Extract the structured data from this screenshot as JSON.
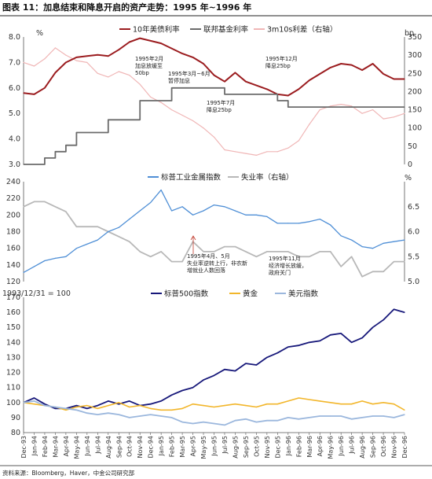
{
  "figure": {
    "title": "图表 11：加息结束和降息开启的资产走势：1995 年~1996 年",
    "source": "资料来源：Bloomberg，Haver，中金公司研究部"
  },
  "x_labels": [
    "Dec-93",
    "Jan-94",
    "Feb-94",
    "Mar-94",
    "Apr-94",
    "May-94",
    "Jun-94",
    "Jul-94",
    "Aug-94",
    "Sep-94",
    "Oct-94",
    "Nov-94",
    "Dec-94",
    "Jan-95",
    "Feb-95",
    "Mar-95",
    "Apr-95",
    "May-95",
    "Jun-95",
    "Jul-95",
    "Aug-95",
    "Sep-95",
    "Oct-95",
    "Nov-95",
    "Dec-95",
    "Jan-96",
    "Feb-96",
    "Mar-96",
    "Apr-96",
    "May-96",
    "Jun-96",
    "Jul-96",
    "Aug-96",
    "Sep-96",
    "Oct-96",
    "Nov-96",
    "Dec-96"
  ],
  "colors": {
    "ust10y": "#9b1c1f",
    "fed_funds": "#6b6b6b",
    "spread": "#f0b6b6",
    "metals": "#4f8fd6",
    "unemployment": "#b8b8b8",
    "sp500": "#17187a",
    "gold": "#f2b62b",
    "usd": "#9bb7dd"
  },
  "chart_data": [
    {
      "type": "line",
      "panel": "top",
      "ylabel_left": "%",
      "ylabel_right": "bp",
      "ylim_left": [
        3.0,
        8.0
      ],
      "ylim_right": [
        0,
        350
      ],
      "yticks_left": [
        "3.0",
        "4.0",
        "5.0",
        "6.0",
        "7.0",
        "8.0"
      ],
      "yticks_right": [
        "0",
        "50",
        "100",
        "150",
        "200",
        "250",
        "300",
        "350"
      ],
      "series": [
        {
          "name": "10年美债利率",
          "axis": "left",
          "x": [
            "Dec-93",
            "Jan-94",
            "Feb-94",
            "Mar-94",
            "Apr-94",
            "May-94",
            "Jun-94",
            "Jul-94",
            "Aug-94",
            "Sep-94",
            "Oct-94",
            "Nov-94",
            "Dec-94",
            "Jan-95",
            "Feb-95",
            "Mar-95",
            "Apr-95",
            "May-95",
            "Jun-95",
            "Jul-95",
            "Aug-95",
            "Sep-95",
            "Oct-95",
            "Nov-95",
            "Dec-95",
            "Jan-96",
            "Feb-96",
            "Mar-96",
            "Apr-96",
            "May-96",
            "Jun-96",
            "Jul-96",
            "Aug-96",
            "Sep-96",
            "Oct-96",
            "Nov-96",
            "Dec-96"
          ],
          "values": [
            5.8,
            5.75,
            6.0,
            6.6,
            7.0,
            7.2,
            7.25,
            7.3,
            7.25,
            7.5,
            7.8,
            7.95,
            7.85,
            7.75,
            7.55,
            7.35,
            7.2,
            6.95,
            6.5,
            6.25,
            6.6,
            6.25,
            6.1,
            5.95,
            5.75,
            5.7,
            5.95,
            6.3,
            6.55,
            6.8,
            6.95,
            6.9,
            6.7,
            6.95,
            6.55,
            6.35,
            6.35
          ]
        },
        {
          "name": "联邦基金利率",
          "axis": "left",
          "step": true,
          "x": [
            "Dec-93",
            "Feb-94",
            "Mar-94",
            "Apr-94",
            "May-94",
            "Aug-94",
            "Nov-94",
            "Feb-95",
            "Jul-95",
            "Dec-95",
            "Jan-96",
            "Dec-96"
          ],
          "values": [
            3.0,
            3.25,
            3.5,
            3.75,
            4.25,
            4.75,
            5.5,
            6.0,
            5.75,
            5.5,
            5.25,
            5.25
          ]
        },
        {
          "name": "3m10s利差（右轴）",
          "axis": "right",
          "x": [
            "Dec-93",
            "Jan-94",
            "Feb-94",
            "Mar-94",
            "Apr-94",
            "May-94",
            "Jun-94",
            "Jul-94",
            "Aug-94",
            "Sep-94",
            "Oct-94",
            "Nov-94",
            "Dec-94",
            "Jan-95",
            "Feb-95",
            "Mar-95",
            "Apr-95",
            "May-95",
            "Jun-95",
            "Jul-95",
            "Aug-95",
            "Sep-95",
            "Oct-95",
            "Nov-95",
            "Dec-95",
            "Jan-96",
            "Feb-96",
            "Mar-96",
            "Apr-96",
            "May-96",
            "Jun-96",
            "Jul-96",
            "Aug-96",
            "Sep-96",
            "Oct-96",
            "Nov-96",
            "Dec-96"
          ],
          "values": [
            280,
            270,
            290,
            320,
            300,
            285,
            280,
            250,
            240,
            255,
            245,
            220,
            185,
            170,
            150,
            135,
            120,
            100,
            75,
            40,
            35,
            30,
            25,
            35,
            35,
            45,
            65,
            110,
            150,
            160,
            165,
            160,
            140,
            150,
            125,
            130,
            140
          ]
        }
      ],
      "annotations": [
        {
          "x": "Feb-95",
          "text": "1995年2月\n加息放缓至\n50bp"
        },
        {
          "x": "Mar-95",
          "text": "1995年3月~6月\n暂停加息"
        },
        {
          "x": "Jul-95",
          "text": "1995年7月\n降息25bp"
        },
        {
          "x": "Dec-95",
          "text": "1995年12月\n降息25bp"
        }
      ]
    },
    {
      "type": "line",
      "panel": "middle",
      "ylabel_right": "%",
      "ylim_left": [
        120,
        240
      ],
      "ylim_right": [
        5.0,
        7.0
      ],
      "yticks_left": [
        "120",
        "140",
        "160",
        "180",
        "200",
        "220",
        "240"
      ],
      "yticks_right": [
        "5.0",
        "5.5",
        "6.0",
        "6.5"
      ],
      "series": [
        {
          "name": "标普工业金属指数",
          "axis": "left",
          "x": [
            "Dec-93",
            "Jan-94",
            "Feb-94",
            "Mar-94",
            "Apr-94",
            "May-94",
            "Jun-94",
            "Jul-94",
            "Aug-94",
            "Sep-94",
            "Oct-94",
            "Nov-94",
            "Dec-94",
            "Jan-95",
            "Feb-95",
            "Mar-95",
            "Apr-95",
            "May-95",
            "Jun-95",
            "Jul-95",
            "Aug-95",
            "Sep-95",
            "Oct-95",
            "Nov-95",
            "Dec-95",
            "Jan-96",
            "Feb-96",
            "Mar-96",
            "Apr-96",
            "May-96",
            "Jun-96",
            "Jul-96",
            "Aug-96",
            "Sep-96",
            "Oct-96",
            "Nov-96",
            "Dec-96"
          ],
          "values": [
            131,
            138,
            145,
            148,
            150,
            160,
            165,
            170,
            180,
            185,
            195,
            205,
            215,
            230,
            205,
            210,
            200,
            205,
            212,
            210,
            205,
            200,
            200,
            198,
            190,
            190,
            190,
            192,
            195,
            188,
            175,
            170,
            162,
            160,
            166,
            168,
            170
          ]
        },
        {
          "name": "失业率（右轴）",
          "axis": "right",
          "x": [
            "Dec-93",
            "Jan-94",
            "Feb-94",
            "Mar-94",
            "Apr-94",
            "May-94",
            "Jun-94",
            "Jul-94",
            "Aug-94",
            "Sep-94",
            "Oct-94",
            "Nov-94",
            "Dec-94",
            "Jan-95",
            "Feb-95",
            "Mar-95",
            "Apr-95",
            "May-95",
            "Jun-95",
            "Jul-95",
            "Aug-95",
            "Sep-95",
            "Oct-95",
            "Nov-95",
            "Dec-95",
            "Jan-96",
            "Feb-96",
            "Mar-96",
            "Apr-96",
            "May-96",
            "Jun-96",
            "Jul-96",
            "Aug-96",
            "Sep-96",
            "Oct-96",
            "Nov-96",
            "Dec-96"
          ],
          "values": [
            6.5,
            6.6,
            6.6,
            6.5,
            6.4,
            6.1,
            6.1,
            6.1,
            6.0,
            5.9,
            5.8,
            5.6,
            5.5,
            5.6,
            5.4,
            5.4,
            5.8,
            5.6,
            5.6,
            5.7,
            5.7,
            5.6,
            5.5,
            5.6,
            5.6,
            5.6,
            5.5,
            5.5,
            5.6,
            5.6,
            5.3,
            5.5,
            5.1,
            5.2,
            5.2,
            5.4,
            5.4
          ]
        }
      ],
      "annotations": [
        {
          "x": "Apr-95",
          "text": "1995年4月、5月\n失业率逆转上行，非农新\n增就业人数回落"
        },
        {
          "x": "Nov-95",
          "text": "1995年11月\n经济增长放缓，\n政府关门"
        }
      ]
    },
    {
      "type": "line",
      "panel": "bottom",
      "ylabel_left": "1993/12/31 = 100",
      "ylim_left": [
        80,
        170
      ],
      "yticks_left": [
        "80",
        "90",
        "100",
        "110",
        "120",
        "130",
        "140",
        "150",
        "160",
        "170"
      ],
      "series": [
        {
          "name": "标普500指数",
          "axis": "left",
          "x": [
            "Dec-93",
            "Jan-94",
            "Feb-94",
            "Mar-94",
            "Apr-94",
            "May-94",
            "Jun-94",
            "Jul-94",
            "Aug-94",
            "Sep-94",
            "Oct-94",
            "Nov-94",
            "Dec-94",
            "Jan-95",
            "Feb-95",
            "Mar-95",
            "Apr-95",
            "May-95",
            "Jun-95",
            "Jul-95",
            "Aug-95",
            "Sep-95",
            "Oct-95",
            "Nov-95",
            "Dec-95",
            "Jan-96",
            "Feb-96",
            "Mar-96",
            "Apr-96",
            "May-96",
            "Jun-96",
            "Jul-96",
            "Aug-96",
            "Sep-96",
            "Oct-96",
            "Nov-96",
            "Dec-96"
          ],
          "values": [
            100,
            103,
            99,
            96,
            96,
            98,
            96,
            98,
            101,
            99,
            101,
            98,
            99,
            101,
            105,
            108,
            110,
            115,
            118,
            122,
            121,
            126,
            125,
            130,
            133,
            137,
            138,
            140,
            141,
            145,
            146,
            140,
            143,
            150,
            155,
            162,
            160
          ]
        },
        {
          "name": "黄金",
          "axis": "left",
          "x": [
            "Dec-93",
            "Jan-94",
            "Feb-94",
            "Mar-94",
            "Apr-94",
            "May-94",
            "Jun-94",
            "Jul-94",
            "Aug-94",
            "Sep-94",
            "Oct-94",
            "Nov-94",
            "Dec-94",
            "Jan-95",
            "Feb-95",
            "Mar-95",
            "Apr-95",
            "May-95",
            "Jun-95",
            "Jul-95",
            "Aug-95",
            "Sep-95",
            "Oct-95",
            "Nov-95",
            "Dec-95",
            "Jan-96",
            "Feb-96",
            "Mar-96",
            "Apr-96",
            "May-96",
            "Jun-96",
            "Jul-96",
            "Aug-96",
            "Sep-96",
            "Oct-96",
            "Nov-96",
            "Dec-96"
          ],
          "values": [
            100,
            99,
            98,
            97,
            95,
            97,
            98,
            96,
            98,
            100,
            97,
            98,
            96,
            95,
            95,
            96,
            99,
            98,
            97,
            98,
            99,
            98,
            97,
            99,
            99,
            101,
            103,
            102,
            101,
            100,
            99,
            99,
            101,
            99,
            100,
            99,
            95
          ]
        },
        {
          "name": "美元指数",
          "axis": "left",
          "x": [
            "Dec-93",
            "Jan-94",
            "Feb-94",
            "Mar-94",
            "Apr-94",
            "May-94",
            "Jun-94",
            "Jul-94",
            "Aug-94",
            "Sep-94",
            "Oct-94",
            "Nov-94",
            "Dec-94",
            "Jan-95",
            "Feb-95",
            "Mar-95",
            "Apr-95",
            "May-95",
            "Jun-95",
            "Jul-95",
            "Aug-95",
            "Sep-95",
            "Oct-95",
            "Nov-95",
            "Dec-95",
            "Jan-96",
            "Feb-96",
            "Mar-96",
            "Apr-96",
            "May-96",
            "Jun-96",
            "Jul-96",
            "Aug-96",
            "Sep-96",
            "Oct-96",
            "Nov-96",
            "Dec-96"
          ],
          "values": [
            100,
            101,
            98,
            97,
            96,
            95,
            93,
            92,
            93,
            92,
            90,
            91,
            92,
            91,
            90,
            87,
            86,
            87,
            86,
            85,
            88,
            89,
            87,
            88,
            88,
            90,
            89,
            90,
            91,
            91,
            91,
            89,
            90,
            91,
            91,
            90,
            92
          ]
        }
      ]
    }
  ]
}
